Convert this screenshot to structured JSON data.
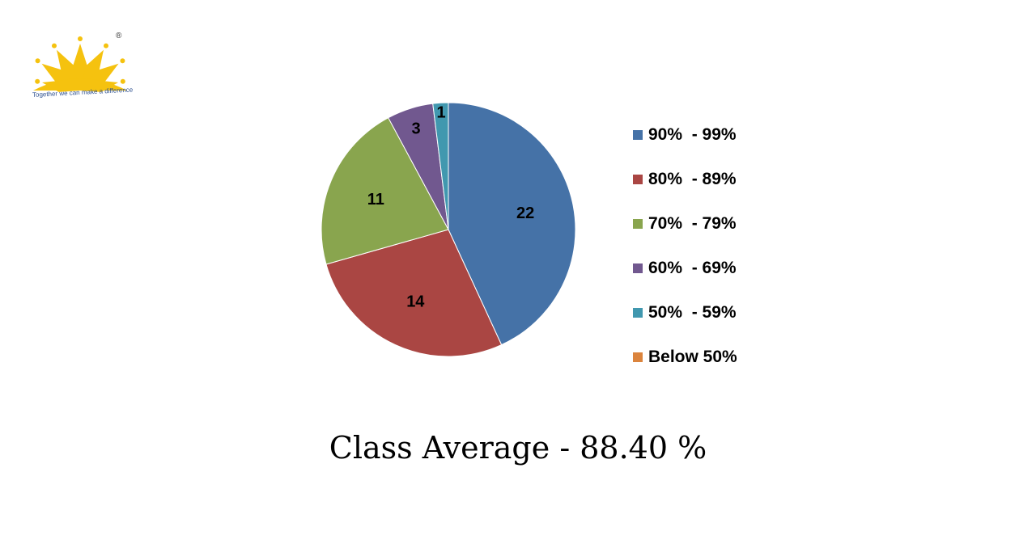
{
  "logo": {
    "tagline": "Together we can make a difference",
    "registered_mark": "®",
    "color": "#f5c20f"
  },
  "chart_data": {
    "type": "pie",
    "categories": [
      "90%  - 99%",
      "80%  - 89%",
      "70%  - 79%",
      "60%  - 69%",
      "50%  - 59%",
      "Below 50%"
    ],
    "values": [
      22,
      14,
      11,
      3,
      1,
      0
    ],
    "data_labels": [
      "22",
      "14",
      "11",
      "3",
      "1",
      ""
    ],
    "colors": [
      "#4572a7",
      "#aa4643",
      "#89a54e",
      "#71588f",
      "#4198af",
      "#db843d"
    ],
    "legend": "right"
  },
  "footer": {
    "text": "Class Average - 88.40 %"
  }
}
